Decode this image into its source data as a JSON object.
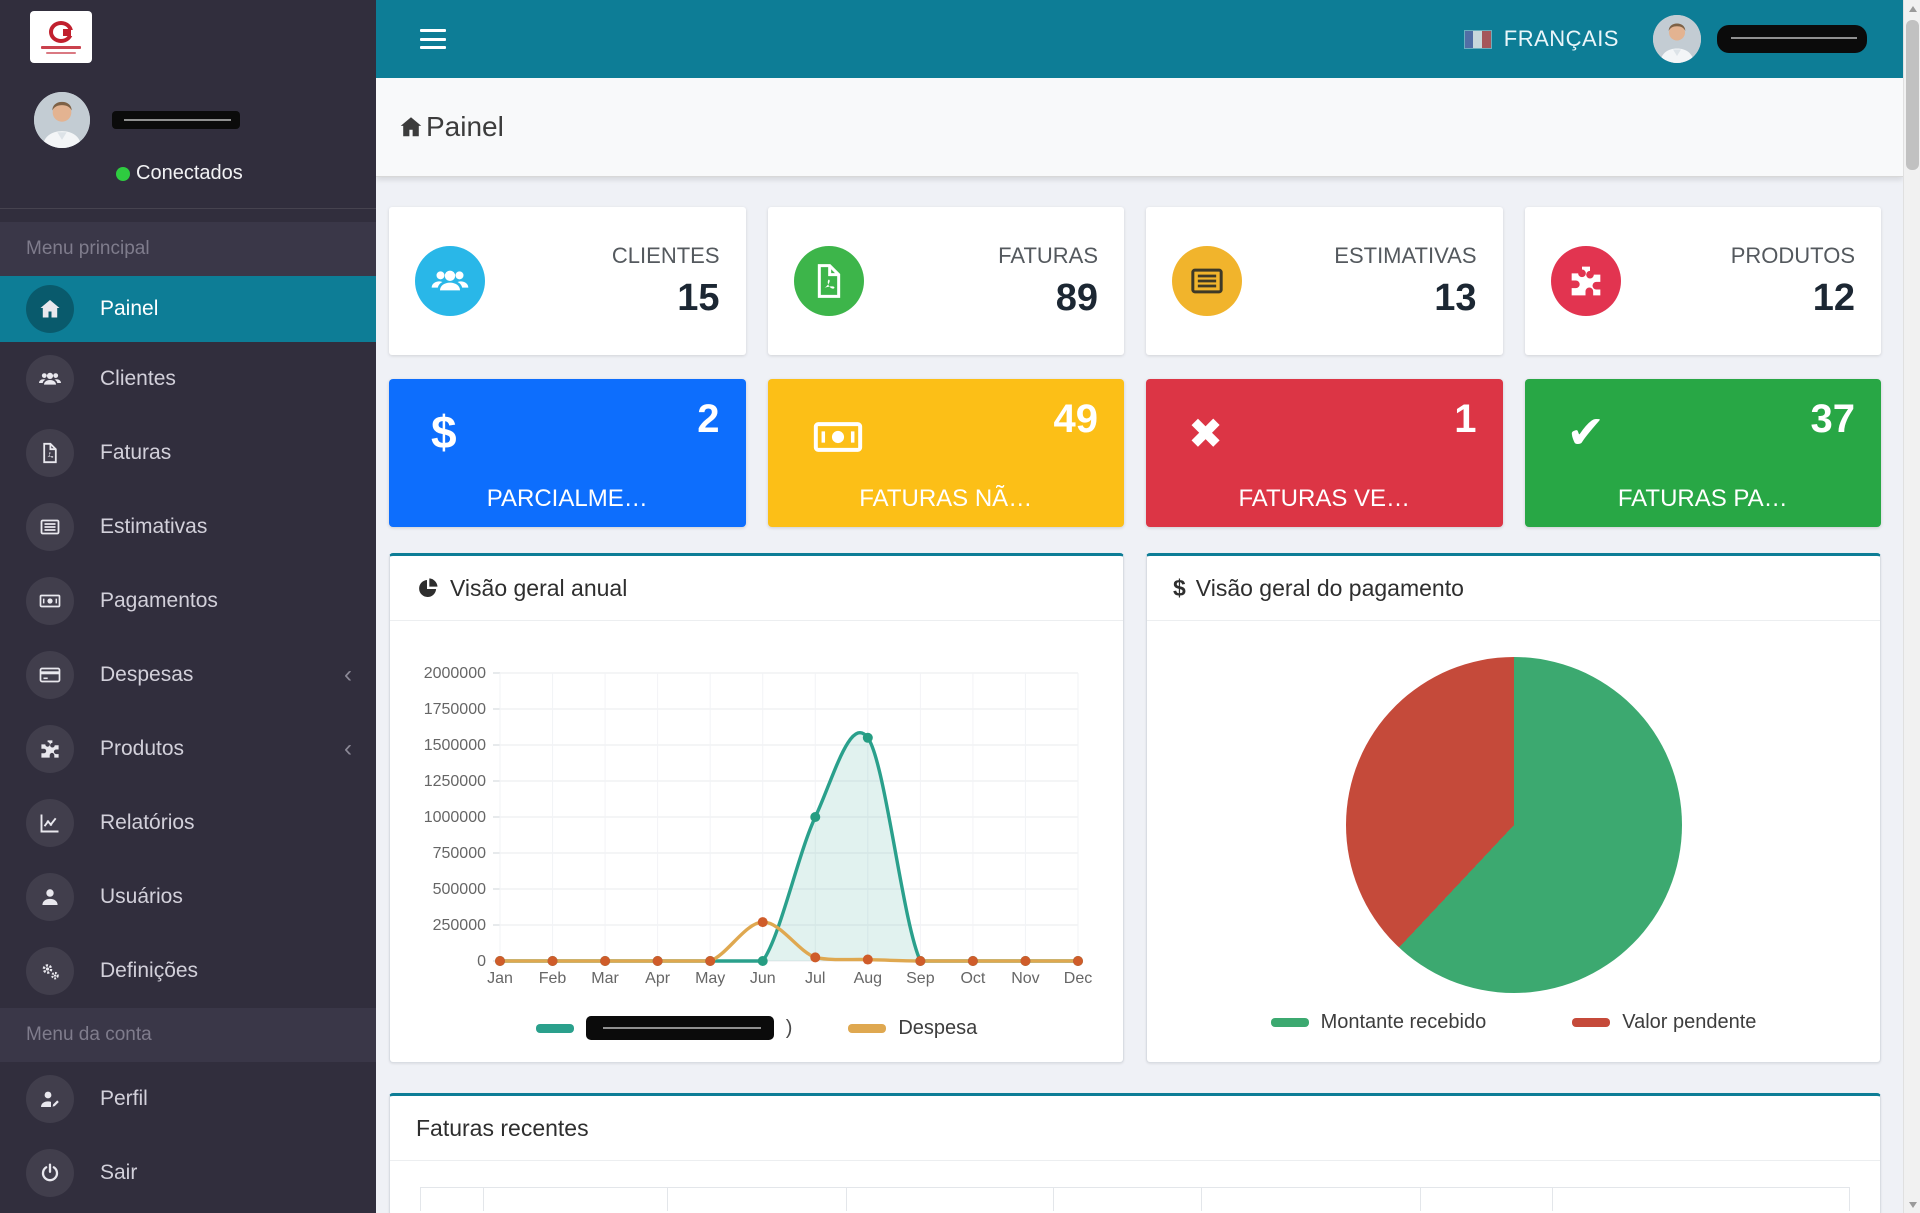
{
  "topbar": {
    "language": "FRANÇAIS",
    "user_name_redacted": true
  },
  "sidebar": {
    "status": "Conectados",
    "user_name_redacted": true,
    "menu_main_label": "Menu principal",
    "menu_account_label": "Menu da conta",
    "items_main": [
      {
        "id": "painel",
        "label": "Painel",
        "icon": "home-icon",
        "active": true
      },
      {
        "id": "clientes",
        "label": "Clientes",
        "icon": "users-icon"
      },
      {
        "id": "faturas",
        "label": "Faturas",
        "icon": "file-pdf-icon"
      },
      {
        "id": "estimativas",
        "label": "Estimativas",
        "icon": "newspaper-icon"
      },
      {
        "id": "pagamentos",
        "label": "Pagamentos",
        "icon": "money-bill-icon"
      },
      {
        "id": "despesas",
        "label": "Despesas",
        "icon": "credit-card-icon",
        "chevron": true
      },
      {
        "id": "produtos",
        "label": "Produtos",
        "icon": "puzzle-icon",
        "chevron": true
      },
      {
        "id": "relatorios",
        "label": "Relatórios",
        "icon": "chart-line-icon"
      },
      {
        "id": "usuarios",
        "label": "Usuários",
        "icon": "user-icon"
      },
      {
        "id": "definicoes",
        "label": "Definições",
        "icon": "cogs-icon"
      }
    ],
    "items_account": [
      {
        "id": "perfil",
        "label": "Perfil",
        "icon": "user-edit-icon"
      },
      {
        "id": "sair",
        "label": "Sair",
        "icon": "power-icon"
      }
    ]
  },
  "header": {
    "title": "Painel"
  },
  "stat_cards": [
    {
      "id": "clientes",
      "label": "CLIENTES",
      "value": "15",
      "icon": "users-icon",
      "color": "#29b7e8"
    },
    {
      "id": "faturas",
      "label": "FATURAS",
      "value": "89",
      "icon": "file-pdf-icon",
      "color": "#3db54a"
    },
    {
      "id": "estimativas",
      "label": "ESTIMATIVAS",
      "value": "13",
      "icon": "newspaper-icon",
      "color": "#f1b42c",
      "icon_dark": true
    },
    {
      "id": "produtos",
      "label": "PRODUTOS",
      "value": "12",
      "icon": "puzzle-icon",
      "color": "#e23450"
    }
  ],
  "summary_cards": [
    {
      "id": "parcialme",
      "value": "2",
      "label": "PARCIALME…",
      "icon": "dollar-icon",
      "color": "#0d6efd"
    },
    {
      "id": "faturas-na",
      "value": "49",
      "label": "FATURAS NÃ…",
      "icon": "money-bill-icon",
      "color": "#fcbf17"
    },
    {
      "id": "faturas-ve",
      "value": "1",
      "label": "FATURAS VE…",
      "icon": "x-icon",
      "color": "#dc3545"
    },
    {
      "id": "faturas-pa",
      "value": "37",
      "label": "FATURAS PA…",
      "icon": "check-icon",
      "color": "#28a745"
    }
  ],
  "panels": {
    "annual_title": "Visão geral anual",
    "payment_title_prefix": "$",
    "payment_title": "Visão geral do pagamento",
    "recent_title": "Faturas recentes"
  },
  "chart_data": [
    {
      "type": "line",
      "title": "Visão geral anual",
      "x": [
        "Jan",
        "Feb",
        "Mar",
        "Apr",
        "May",
        "Jun",
        "Jul",
        "Aug",
        "Sep",
        "Oct",
        "Nov",
        "Dec"
      ],
      "series": [
        {
          "name": "",
          "name_redacted": true,
          "name_suffix": ")",
          "color": "#2aa08c",
          "point_color": "#259d82",
          "fill": true,
          "values": [
            0,
            0,
            0,
            0,
            0,
            0,
            1000000,
            1550000,
            0,
            0,
            0,
            0
          ]
        },
        {
          "name": "Despesa",
          "name_redacted": false,
          "color": "#dfa850",
          "point_color": "#cf5c2a",
          "fill": false,
          "values": [
            0,
            0,
            0,
            0,
            0,
            270000,
            25000,
            10000,
            0,
            0,
            0,
            0
          ]
        }
      ],
      "ylim": [
        0,
        2000000
      ],
      "ytick_step": 250000,
      "grid": true,
      "legend_position": "bottom"
    },
    {
      "type": "pie",
      "title": "Visão geral do pagamento",
      "labels": [
        "Montante recebido",
        "Valor pendente"
      ],
      "values": [
        62,
        38
      ],
      "colors": [
        "#3ca970",
        "#c54a3a"
      ],
      "legend_position": "bottom"
    }
  ],
  "recent_table": {
    "columns": [
      "",
      "",
      "",
      "",
      "",
      "",
      "",
      ""
    ]
  }
}
